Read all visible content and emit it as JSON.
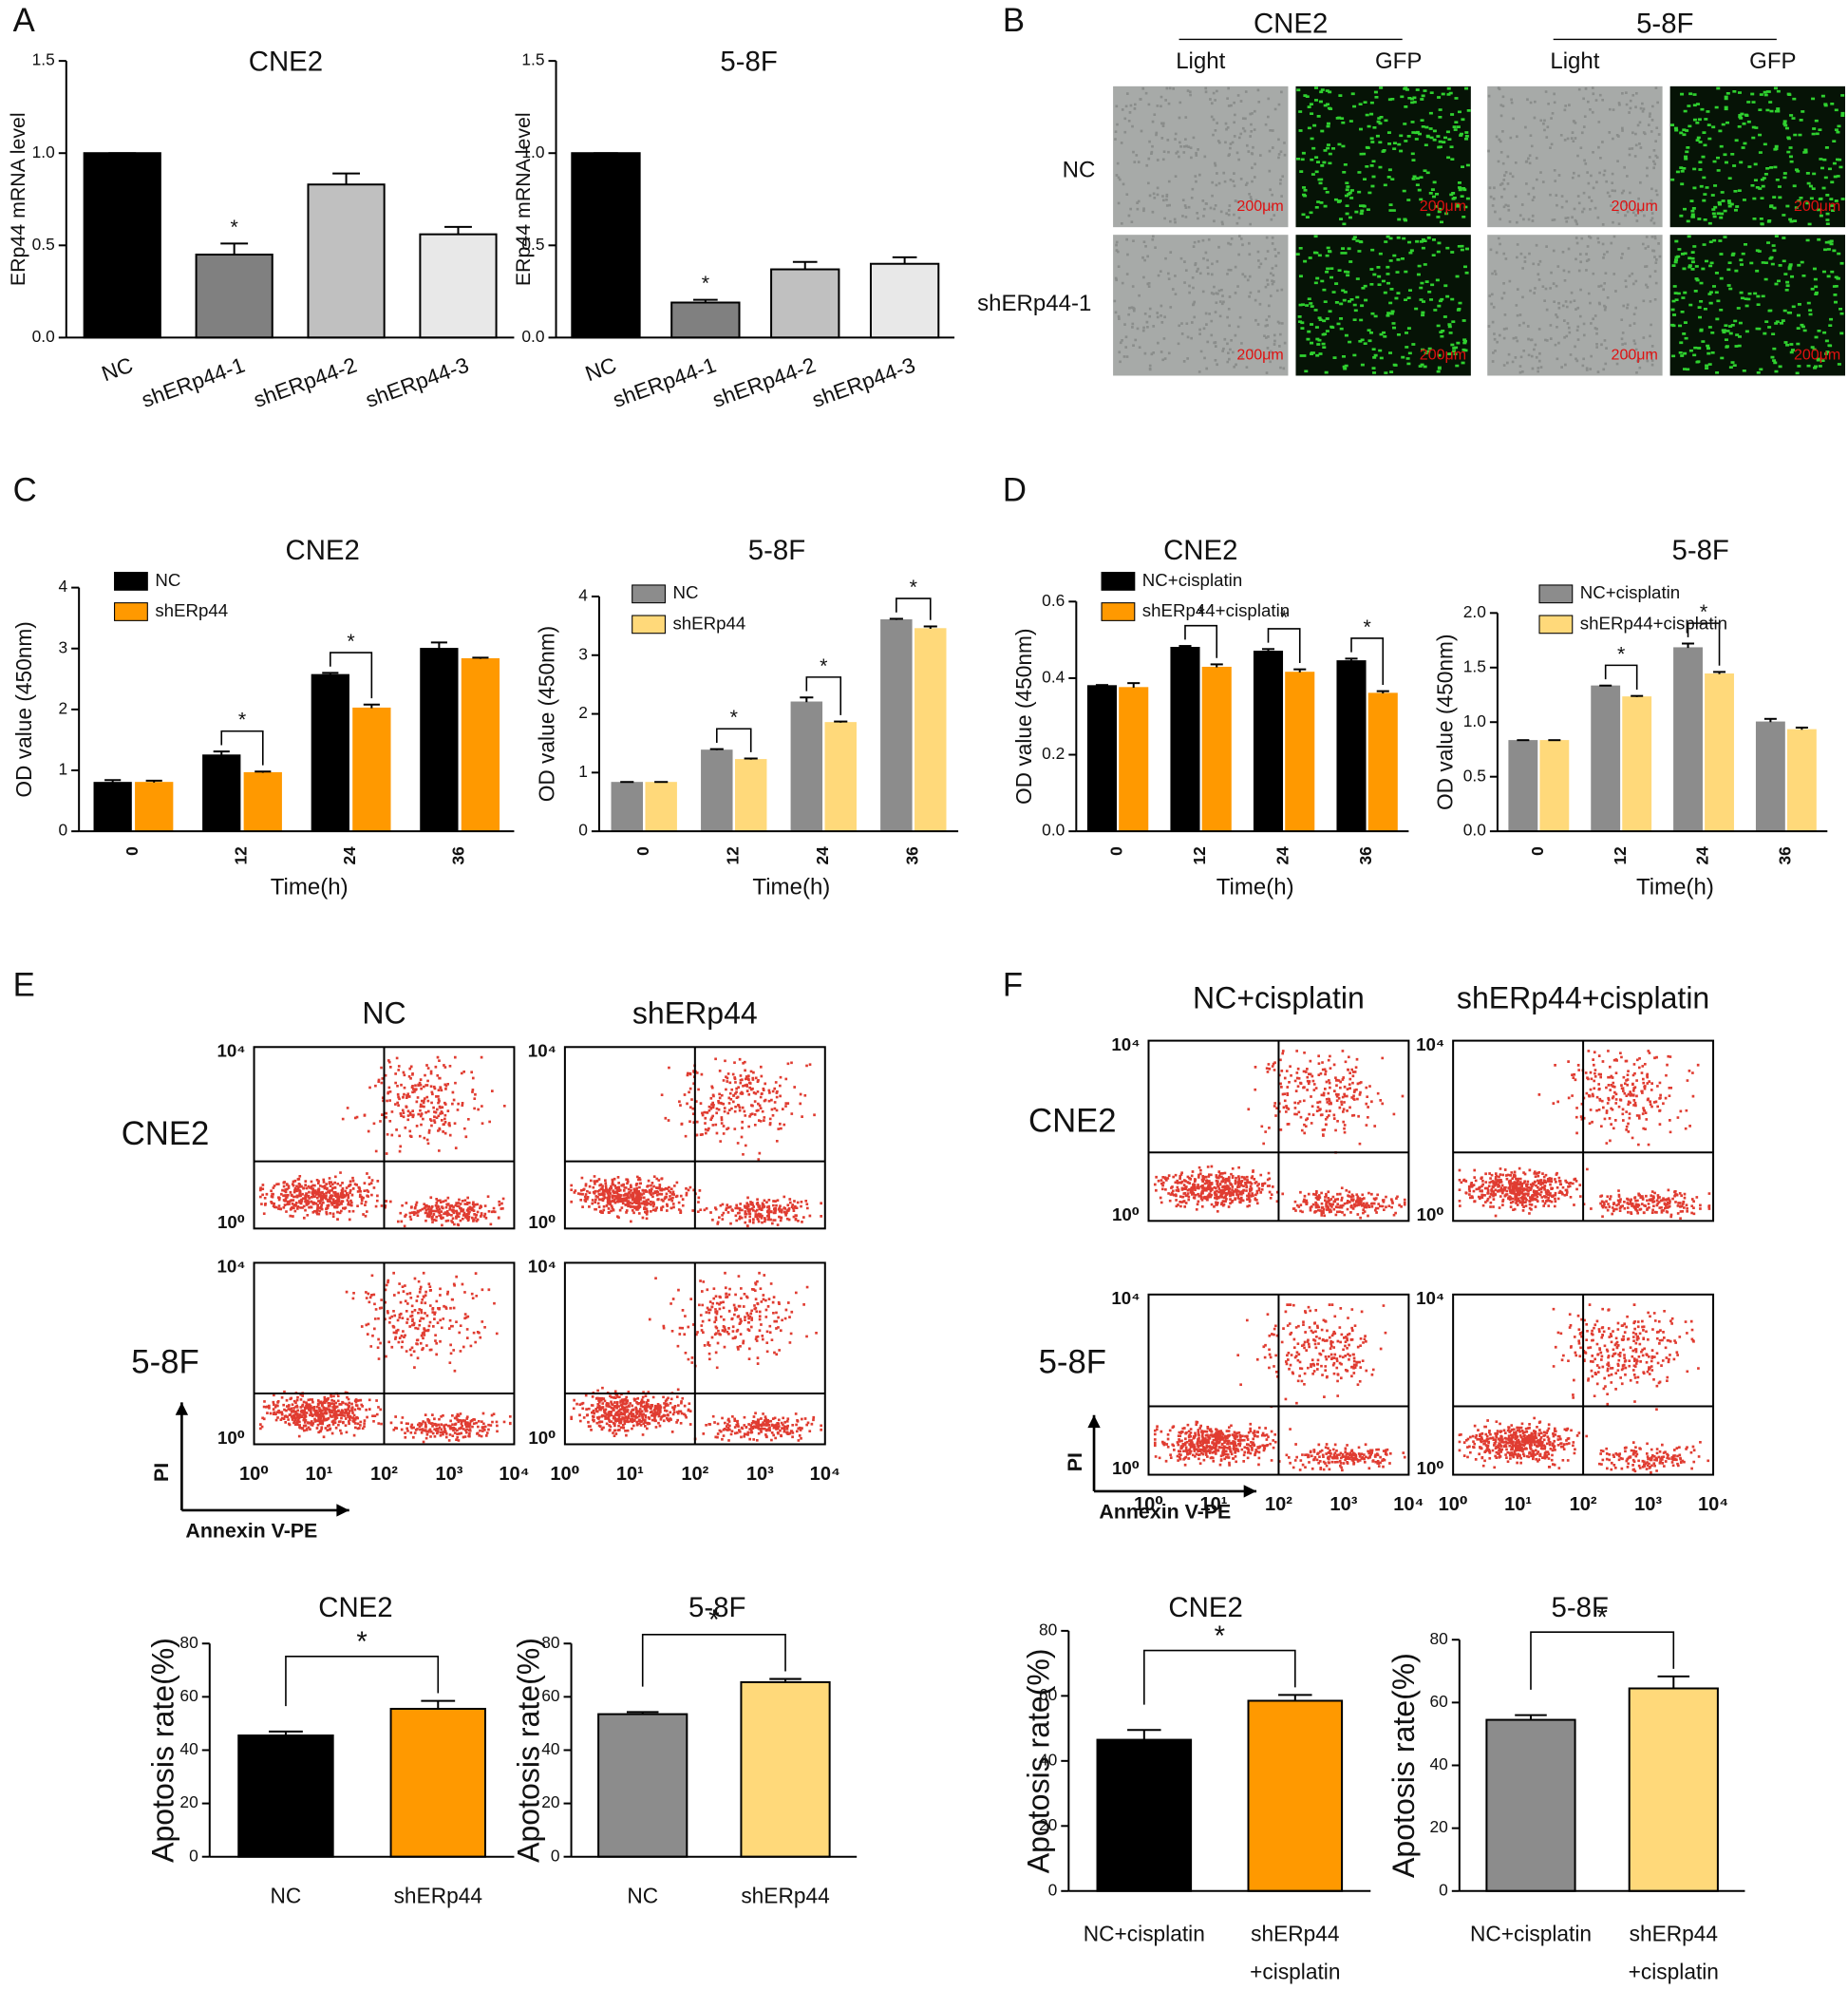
{
  "panel_labels": [
    "A",
    "B",
    "C",
    "D",
    "E",
    "F"
  ],
  "micrographs": {
    "cell_lines": [
      "CNE2",
      "5-8F"
    ],
    "channels": [
      "Light",
      "GFP"
    ],
    "rows": [
      "NC",
      "shERp44-1"
    ],
    "scale_bar": "200μm"
  },
  "flow_cytometry": [
    {
      "columns": [
        "NC",
        "shERp44"
      ],
      "rows": [
        "CNE2",
        "5-8F"
      ],
      "y_ticks": [
        "10⁴",
        "10⁰"
      ],
      "x_ticks": [
        "10⁰",
        "10¹",
        "10²",
        "10³",
        "10⁴"
      ],
      "y_axis_label": "PI",
      "x_axis_label": "Annexin V-PE"
    },
    {
      "columns": [
        "NC+cisplatin",
        "shERp44+cisplatin"
      ],
      "rows": [
        "CNE2",
        "5-8F"
      ],
      "y_ticks": [
        "10⁴",
        "10⁰"
      ],
      "x_ticks": [
        "10⁰",
        "10¹",
        "10²",
        "10³",
        "10⁴"
      ],
      "y_axis_label": "PI",
      "x_axis_label": "Annexin V-PE"
    }
  ],
  "chart_data": [
    {
      "type": "bar",
      "title": "CNE2",
      "ylabel": "ERp44 mRNA level",
      "categories": [
        "NC",
        "shERp44-1",
        "shERp44-2",
        "shERp44-3"
      ],
      "values": [
        1.0,
        0.45,
        0.83,
        0.56
      ],
      "errors": [
        0,
        0.06,
        0.06,
        0.04
      ],
      "colors": [
        "#000000",
        "#808080",
        "#c0c0c0",
        "#e8e8e8"
      ],
      "ylim": [
        0,
        1.5
      ],
      "yticks": [
        {
          "value": 0,
          "label": "0.0"
        },
        {
          "value": 0.5,
          "label": "0.5"
        },
        {
          "value": 1,
          "label": "1.0"
        },
        {
          "value": 1.5,
          "label": "1.5"
        }
      ],
      "significance": [
        {
          "label": "*",
          "category": 1
        }
      ]
    },
    {
      "type": "bar",
      "title": "5-8F",
      "ylabel": "ERp44 mRNA level",
      "categories": [
        "NC",
        "shERp44-1",
        "shERp44-2",
        "shERp44-3"
      ],
      "values": [
        1.0,
        0.19,
        0.37,
        0.4
      ],
      "errors": [
        0,
        0.015,
        0.04,
        0.035
      ],
      "colors": [
        "#000000",
        "#808080",
        "#c0c0c0",
        "#e8e8e8"
      ],
      "ylim": [
        0,
        1.5
      ],
      "yticks": [
        {
          "value": 0,
          "label": "0.0"
        },
        {
          "value": 0.5,
          "label": "0.5"
        },
        {
          "value": 1,
          "label": "1.0"
        },
        {
          "value": 1.5,
          "label": "1.5"
        }
      ],
      "significance": [
        {
          "label": "*",
          "category": 1
        }
      ]
    },
    {
      "type": "grouped_bar",
      "title": "CNE2",
      "xlabel": "Time(h)",
      "ylabel": "OD value (450nm)",
      "categories": [
        "0",
        "12",
        "24",
        "36"
      ],
      "series": [
        {
          "name": "NC",
          "color": "#000000",
          "values": [
            0.8,
            1.25,
            2.57,
            3.0
          ],
          "errors": [
            0.04,
            0.06,
            0.03,
            0.1
          ]
        },
        {
          "name": "shERp44",
          "color": "#ff9900",
          "values": [
            0.8,
            0.96,
            2.02,
            2.83
          ],
          "errors": [
            0.03,
            0.02,
            0.06,
            0.02
          ]
        }
      ],
      "ylim": [
        0,
        4
      ],
      "yticks": [
        0,
        1,
        2,
        3,
        4
      ],
      "significance": [
        {
          "label": "*",
          "category": 1
        },
        {
          "label": "*",
          "category": 2
        }
      ]
    },
    {
      "type": "grouped_bar",
      "title": "5-8F",
      "xlabel": "Time(h)",
      "ylabel": "OD value (450nm)",
      "categories": [
        "0",
        "12",
        "24",
        "36"
      ],
      "series": [
        {
          "name": "NC",
          "color": "#8c8c8c",
          "values": [
            0.83,
            1.38,
            2.2,
            3.6
          ],
          "errors": [
            0.01,
            0.02,
            0.08,
            0.02
          ]
        },
        {
          "name": "shERp44",
          "color": "#ffd97a",
          "values": [
            0.83,
            1.22,
            1.85,
            3.45
          ],
          "errors": [
            0.01,
            0.02,
            0.02,
            0.04
          ]
        }
      ],
      "ylim": [
        0,
        4
      ],
      "yticks": [
        0,
        1,
        2,
        3,
        4
      ],
      "significance": [
        {
          "label": "*",
          "category": 1
        },
        {
          "label": "*",
          "category": 2
        },
        {
          "label": "*",
          "category": 3
        }
      ]
    },
    {
      "type": "grouped_bar",
      "title": "CNE2",
      "xlabel": "Time(h)",
      "ylabel": "OD value (450nm)",
      "categories": [
        "0",
        "12",
        "24",
        "36"
      ],
      "series": [
        {
          "name": "NC+cisplatin",
          "color": "#000000",
          "values": [
            0.38,
            0.48,
            0.47,
            0.445
          ],
          "errors": [
            0.002,
            0.004,
            0.006,
            0.006
          ]
        },
        {
          "name": "shERp44+cisplatin",
          "color": "#ff9900",
          "values": [
            0.375,
            0.428,
            0.415,
            0.36
          ],
          "errors": [
            0.012,
            0.008,
            0.008,
            0.006
          ]
        }
      ],
      "ylim": [
        0,
        0.6
      ],
      "yticks": [
        {
          "value": 0,
          "label": "0.0"
        },
        {
          "value": 0.2,
          "label": "0.2"
        },
        {
          "value": 0.4,
          "label": "0.4"
        },
        {
          "value": 0.6,
          "label": "0.6"
        }
      ],
      "significance": [
        {
          "label": "*",
          "category": 1
        },
        {
          "label": "*",
          "category": 2
        },
        {
          "label": "*",
          "category": 3
        }
      ]
    },
    {
      "type": "grouped_bar",
      "title": "5-8F",
      "xlabel": "Time(h)",
      "ylabel": "OD value (450nm)",
      "categories": [
        "0",
        "12",
        "24",
        "36"
      ],
      "series": [
        {
          "name": "NC+cisplatin",
          "color": "#8c8c8c",
          "values": [
            0.83,
            1.33,
            1.68,
            1.0
          ],
          "errors": [
            0.005,
            0.005,
            0.04,
            0.03
          ]
        },
        {
          "name": "shERp44+cisplatin",
          "color": "#ffd97a",
          "values": [
            0.83,
            1.23,
            1.44,
            0.93
          ],
          "errors": [
            0.005,
            0.01,
            0.02,
            0.02
          ]
        }
      ],
      "ylim": [
        0,
        2
      ],
      "yticks": [
        {
          "value": 0,
          "label": "0.0"
        },
        {
          "value": 0.5,
          "label": "0.5"
        },
        {
          "value": 1,
          "label": "1.0"
        },
        {
          "value": 1.5,
          "label": "1.5"
        },
        {
          "value": 2,
          "label": "2.0"
        }
      ],
      "significance": [
        {
          "label": "*",
          "category": 1
        },
        {
          "label": "*",
          "category": 2
        }
      ]
    },
    {
      "type": "bar",
      "title": "CNE2",
      "ylabel": "Apotosis rate(%)",
      "categories": [
        "NC",
        "shERp44"
      ],
      "values": [
        45.5,
        55.5
      ],
      "errors": [
        1.5,
        3
      ],
      "colors": [
        "#000000",
        "#ff9900"
      ],
      "ylim": [
        0,
        80
      ],
      "yticks": [
        0,
        20,
        40,
        60,
        80
      ],
      "significance": [
        {
          "label": "*",
          "categories": [
            0,
            1
          ]
        }
      ]
    },
    {
      "type": "bar",
      "title": "5-8F",
      "ylabel": "Apotosis rate(%)",
      "categories": [
        "NC",
        "shERp44"
      ],
      "values": [
        53.5,
        65.5
      ],
      "errors": [
        0.8,
        1.2
      ],
      "colors": [
        "#8c8c8c",
        "#ffd97a"
      ],
      "ylim": [
        0,
        80
      ],
      "yticks": [
        0,
        20,
        40,
        60,
        80
      ],
      "significance": [
        {
          "label": "*",
          "categories": [
            0,
            1
          ]
        }
      ]
    },
    {
      "type": "bar",
      "title": "CNE2",
      "ylabel": "Apotosis rate(%)",
      "categories": [
        [
          "NC+cisplatin"
        ],
        [
          "shERp44",
          "+cisplatin"
        ]
      ],
      "values": [
        46.5,
        58.5
      ],
      "errors": [
        3,
        1.8
      ],
      "colors": [
        "#000000",
        "#ff9900"
      ],
      "ylim": [
        0,
        80
      ],
      "yticks": [
        0,
        20,
        40,
        60,
        80
      ],
      "significance": [
        {
          "label": "*",
          "categories": [
            0,
            1
          ]
        }
      ]
    },
    {
      "type": "bar",
      "title": "5-8F",
      "ylabel": "Apotosis rate(%)",
      "categories": [
        [
          "NC+cisplatin"
        ],
        [
          "shERp44",
          "+cisplatin"
        ]
      ],
      "values": [
        54.5,
        64.5
      ],
      "errors": [
        1.5,
        3.8
      ],
      "colors": [
        "#8c8c8c",
        "#ffd97a"
      ],
      "ylim": [
        0,
        80
      ],
      "yticks": [
        0,
        20,
        40,
        60,
        80
      ],
      "significance": [
        {
          "label": "*",
          "categories": [
            0,
            1
          ]
        }
      ]
    }
  ]
}
